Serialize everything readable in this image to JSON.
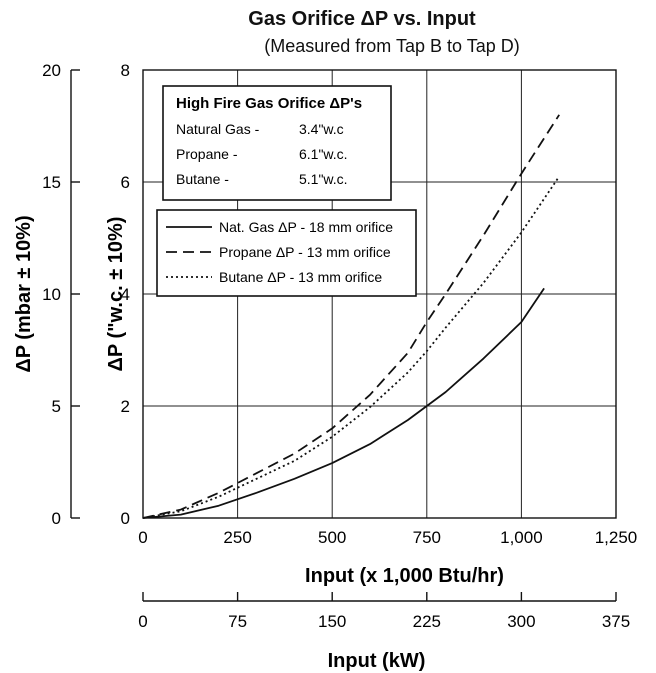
{
  "chart_data": {
    "type": "line",
    "title": "Gas Orifice ΔP vs. Input",
    "subtitle": "(Measured from Tap B to Tap D)",
    "xlabel": "Input (x 1,000 Btu/hr)",
    "xlabel2": "Input (kW)",
    "ylabel": "ΔP (\"w.c. ± 10%)",
    "ylabel2": "ΔP (mbar ± 10%)",
    "xlim": [
      0,
      1250
    ],
    "xticks": [
      "0",
      "250",
      "500",
      "750",
      "1,000",
      "1,250"
    ],
    "ylim": [
      0,
      8
    ],
    "yticks": [
      "0",
      "2",
      "4",
      "6",
      "8"
    ],
    "x2ticks": [
      "0",
      "75",
      "150",
      "225",
      "300",
      "375"
    ],
    "y2ticks": [
      "0",
      "5",
      "10",
      "15",
      "20"
    ],
    "grid": true,
    "legend_placement": "top-left",
    "series": [
      {
        "name": "Nat. Gas ΔP - 18 mm orifice",
        "style": "solid",
        "x": [
          0,
          100,
          200,
          300,
          400,
          500,
          600,
          700,
          750,
          800,
          900,
          1000,
          1060
        ],
        "y": [
          0,
          0.06,
          0.22,
          0.45,
          0.7,
          0.98,
          1.32,
          1.75,
          2.0,
          2.25,
          2.85,
          3.5,
          4.1
        ]
      },
      {
        "name": "Propane  ΔP - 13 mm orifice",
        "style": "dashed",
        "x": [
          0,
          100,
          200,
          300,
          400,
          500,
          600,
          700,
          750,
          800,
          900,
          1000,
          1100
        ],
        "y": [
          0,
          0.15,
          0.45,
          0.8,
          1.15,
          1.6,
          2.2,
          2.95,
          3.5,
          4.0,
          5.05,
          6.15,
          7.2
        ]
      },
      {
        "name": "Butane   ΔP - 13 mm orifice",
        "style": "dotted",
        "x": [
          0,
          100,
          200,
          300,
          400,
          500,
          600,
          700,
          750,
          800,
          900,
          1000,
          1100
        ],
        "y": [
          0,
          0.12,
          0.38,
          0.7,
          1.02,
          1.45,
          1.98,
          2.6,
          2.98,
          3.4,
          4.2,
          5.1,
          6.1
        ]
      }
    ],
    "info_box": {
      "title": "High Fire Gas Orifice ΔP's",
      "rows": [
        {
          "gas": "Natural Gas -",
          "value": "3.4\"w.c"
        },
        {
          "gas": "Propane -",
          "value": "6.1\"w.c."
        },
        {
          "gas": "Butane -",
          "value": "5.1\"w.c."
        }
      ]
    },
    "colors": {
      "line": "#111111",
      "grid": "#222222"
    }
  }
}
